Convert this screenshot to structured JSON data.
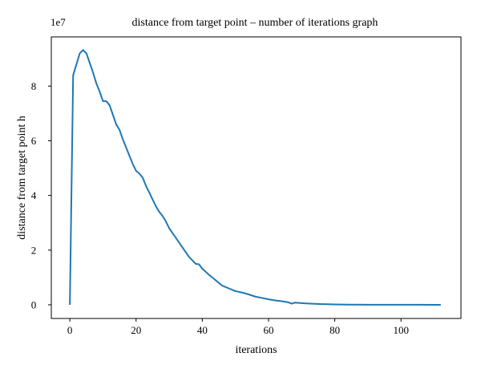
{
  "chart_data": {
    "type": "line",
    "title": "distance from target point – number of iterations graph",
    "xlabel": "iterations",
    "ylabel": "distance from target point h",
    "y_offset_label": "1e7",
    "xlim": [
      -5.6,
      118.1
    ],
    "ylim": [
      -5000000,
      98000000
    ],
    "x_ticks": [
      0,
      20,
      40,
      60,
      80,
      100
    ],
    "x_tick_labels": [
      "0",
      "20",
      "40",
      "60",
      "80",
      "100"
    ],
    "y_ticks": [
      0,
      20000000,
      40000000,
      60000000,
      80000000
    ],
    "y_tick_labels": [
      "0",
      "2",
      "4",
      "6",
      "8"
    ],
    "grid": false,
    "legend": "none",
    "series": [
      {
        "color": "#1f77b4",
        "x": [
          0,
          1,
          2,
          3,
          4,
          5,
          6,
          7,
          8,
          9,
          10,
          11,
          12,
          13,
          14,
          15,
          16,
          17,
          18,
          19,
          20,
          21,
          22,
          23,
          24,
          25,
          26,
          27,
          28,
          29,
          30,
          32,
          34,
          36,
          38,
          39,
          40,
          42,
          44,
          46,
          48,
          50,
          52,
          54,
          56,
          58,
          60,
          62,
          64,
          66,
          67,
          68,
          70,
          72,
          74,
          76,
          78,
          80,
          82,
          84,
          86,
          90,
          95,
          100,
          105,
          110,
          112
        ],
        "y": [
          0,
          84000000,
          88000000,
          92000000,
          93200000,
          92000000,
          88500000,
          85000000,
          81000000,
          78000000,
          74500000,
          74500000,
          73000000,
          69500000,
          66000000,
          64000000,
          60500000,
          57500000,
          54500000,
          51500000,
          49000000,
          48000000,
          46500000,
          43500000,
          41000000,
          38500000,
          36000000,
          34000000,
          32500000,
          30500000,
          28000000,
          24500000,
          21000000,
          17500000,
          15000000,
          14800000,
          13200000,
          11000000,
          9000000,
          7000000,
          6000000,
          5000000,
          4500000,
          3800000,
          3000000,
          2500000,
          2000000,
          1600000,
          1300000,
          900000,
          400000,
          800000,
          600000,
          450000,
          350000,
          250000,
          200000,
          150000,
          110000,
          80000,
          60000,
          40000,
          25000,
          15000,
          10000,
          5000,
          5000
        ]
      }
    ]
  }
}
